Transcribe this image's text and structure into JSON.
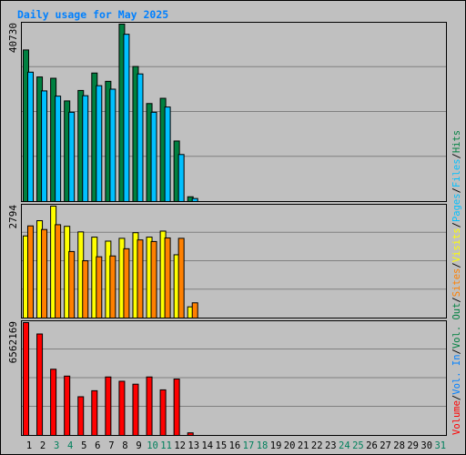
{
  "chart_data": {
    "type": "bar",
    "title": "Daily usage for May 2025",
    "categories": [
      "1",
      "2",
      "3",
      "4",
      "5",
      "6",
      "7",
      "8",
      "9",
      "10",
      "11",
      "12",
      "13",
      "14",
      "15",
      "16",
      "17",
      "18",
      "19",
      "20",
      "21",
      "22",
      "23",
      "24",
      "25",
      "26",
      "27",
      "28",
      "29",
      "30",
      "31"
    ],
    "weekend_days": [
      "3",
      "4",
      "10",
      "11",
      "17",
      "18",
      "24",
      "25",
      "31"
    ],
    "colors": {
      "hits": "#008040",
      "files": "#00c0ff",
      "visits": "#ffff00",
      "sites": "#ff8000",
      "volume": "#ff0000",
      "title": "#0080ff",
      "weekend_label": "#00805c",
      "weekday_label": "#000000",
      "background": "#c0c0c0"
    },
    "panels": [
      {
        "id": "hits-files",
        "ymax": 40730,
        "ymax_label": "40730",
        "series": [
          {
            "key": "hits",
            "values": [
              34800,
              28600,
              28300,
              23100,
              25500,
              29500,
              27600,
              40730,
              31000,
              22500,
              23700,
              13900,
              1100
            ]
          },
          {
            "key": "files",
            "values": [
              29700,
              25400,
              24200,
              20500,
              24300,
              26600,
              25800,
              38400,
              29300,
              20500,
              21700,
              10800,
              700
            ]
          }
        ]
      },
      {
        "id": "visits-sites",
        "ymax": 2794,
        "ymax_label": "2794",
        "series": [
          {
            "key": "visits",
            "values": [
              2050,
              2430,
              2794,
              2290,
              2150,
              2020,
              1920,
              1990,
              2130,
              2020,
              2170,
              1580,
              280
            ]
          },
          {
            "key": "sites",
            "values": [
              2300,
              2210,
              2330,
              1660,
              1430,
              1530,
              1550,
              1730,
              1950,
              1910,
              2000,
              1990,
              380
            ]
          }
        ]
      },
      {
        "id": "volume",
        "ymax": 6562169,
        "ymax_label": "6562169",
        "series": [
          {
            "key": "volume",
            "values": [
              6562169,
              5900000,
              3850000,
              3450000,
              2250000,
              2600000,
              3400000,
              3150000,
              2980000,
              3400000,
              2650000,
              3280000,
              150000
            ]
          }
        ]
      }
    ],
    "legend_right": [
      {
        "text": "Hits",
        "color": "#008040"
      },
      {
        "text": "/",
        "color": "#000000"
      },
      {
        "text": "Files",
        "color": "#00c0ff"
      },
      {
        "text": "/",
        "color": "#000000"
      },
      {
        "text": "Pages",
        "color": "#00c0ff"
      },
      {
        "text": "/",
        "color": "#000000"
      },
      {
        "text": "Visits",
        "color": "#ffff00"
      },
      {
        "text": "/",
        "color": "#000000"
      },
      {
        "text": "Sites",
        "color": "#ff8000"
      },
      {
        "text": "/",
        "color": "#000000"
      },
      {
        "text": "Vol. Out",
        "color": "#008040"
      },
      {
        "text": "/",
        "color": "#000000"
      },
      {
        "text": "Vol. In",
        "color": "#0080ff"
      },
      {
        "text": "/",
        "color": "#000000"
      },
      {
        "text": "Volume",
        "color": "#ff0000"
      }
    ],
    "grid": true
  }
}
